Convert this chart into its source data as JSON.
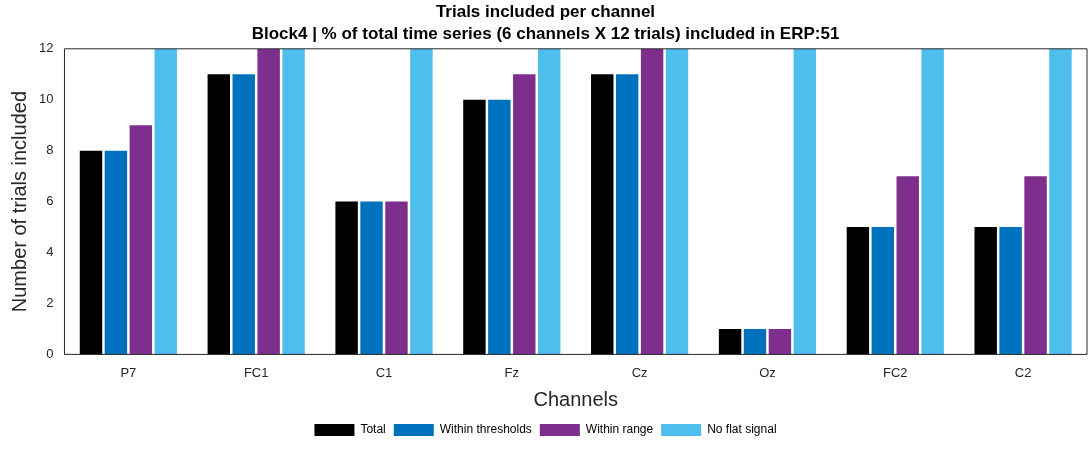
{
  "chart_data": {
    "type": "bar",
    "title": "Trials included per channel",
    "subtitle": "Block4 | % of total time series (6 channels X 12 trials) included in ERP:51",
    "xlabel": "Channels",
    "ylabel": "Number of trials included",
    "categories": [
      "P7",
      "FC1",
      "C1",
      "Fz",
      "Cz",
      "Oz",
      "FC2",
      "C2"
    ],
    "series": [
      {
        "name": "Total",
        "color": "#000000",
        "values": [
          8,
          11,
          6,
          10,
          11,
          1,
          5,
          5
        ]
      },
      {
        "name": "Within thresholds",
        "color": "#0072bd",
        "values": [
          8,
          11,
          6,
          10,
          11,
          1,
          5,
          5
        ]
      },
      {
        "name": "Within range",
        "color": "#7e2f8e",
        "values": [
          9,
          12,
          6,
          11,
          12,
          1,
          7,
          7
        ]
      },
      {
        "name": "No flat signal",
        "color": "#4dbeee",
        "values": [
          12,
          12,
          12,
          12,
          12,
          12,
          12,
          12
        ]
      }
    ],
    "ylim": [
      0,
      12
    ],
    "yticks": [
      0,
      2,
      4,
      6,
      8,
      10,
      12
    ],
    "grid": false,
    "legend": "bottom"
  }
}
